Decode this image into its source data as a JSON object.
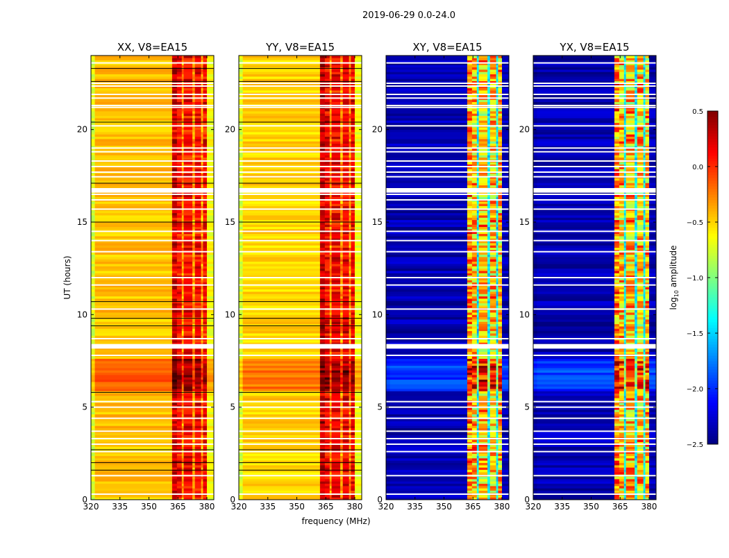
{
  "chart_data": {
    "type": "heatmap",
    "suptitle": "2019-06-29 0.0-24.0",
    "xlabel": "frequency (MHz)",
    "ylabel": "UT (hours)",
    "xlim": [
      320,
      383.6
    ],
    "ylim": [
      0,
      24
    ],
    "xticks": [
      "320",
      "335",
      "350",
      "365",
      "380"
    ],
    "xtick_values": [
      320,
      335,
      350,
      365,
      380
    ],
    "yticks": [
      "0",
      "5",
      "10",
      "15",
      "20"
    ],
    "ytick_values": [
      0,
      5,
      10,
      15,
      20
    ],
    "colorbar": {
      "label": "log10 amplitude",
      "label_main": "log",
      "label_sub": "10",
      "label_rest": " amplitude",
      "range": [
        -2.5,
        0.5
      ],
      "ticks": [
        "0.5",
        "0.0",
        "−0.5",
        "−1.0",
        "−1.5",
        "−2.0",
        "−2.5"
      ],
      "tick_values": [
        0.5,
        0.0,
        -0.5,
        -1.0,
        -1.5,
        -2.0,
        -2.5
      ],
      "colormap": "jet"
    },
    "panels": [
      {
        "title": "XX, V8=EA15",
        "base_level": -0.45,
        "rfi_level": 0.1,
        "gap_level": -0.35,
        "edge_level": -0.75,
        "show_xlabel": false,
        "show_ylabel": true
      },
      {
        "title": "YY, V8=EA15",
        "base_level": -0.5,
        "rfi_level": 0.15,
        "gap_level": -0.3,
        "edge_level": -0.75,
        "show_xlabel": true,
        "show_ylabel": false
      },
      {
        "title": "XY, V8=EA15",
        "base_level": -2.35,
        "rfi_level": -0.45,
        "gap_level": -1.4,
        "edge_level": -2.4,
        "show_xlabel": false,
        "show_ylabel": false
      },
      {
        "title": "YX, V8=EA15",
        "base_level": -2.35,
        "rfi_level": -0.45,
        "gap_level": -1.4,
        "edge_level": -2.4,
        "show_xlabel": false,
        "show_ylabel": false
      }
    ],
    "rfi_band_mhz": [
      362,
      380
    ],
    "rfi_gaps_mhz": [
      367,
      373,
      377.5
    ],
    "flagged_rows_ut": [
      23.6,
      22.5,
      22.35,
      21.9,
      21.7,
      21.3,
      21.2,
      20.2,
      19.0,
      18.8,
      18.3,
      18.0,
      17.7,
      17.45,
      16.8,
      16.7,
      16.5,
      16.2,
      15.7,
      14.5,
      14.0,
      13.4,
      12.0,
      11.6,
      10.3,
      8.7,
      8.3,
      8.2,
      7.8,
      5.3,
      5.0,
      4.4,
      3.7,
      3.3,
      3.0,
      2.6,
      1.3,
      0.3
    ],
    "black_lines_ut": [
      23.3,
      22.6,
      20.4,
      17.1,
      15.0,
      10.7,
      9.8,
      9.4,
      5.8,
      2.7,
      2.0,
      1.6
    ]
  }
}
